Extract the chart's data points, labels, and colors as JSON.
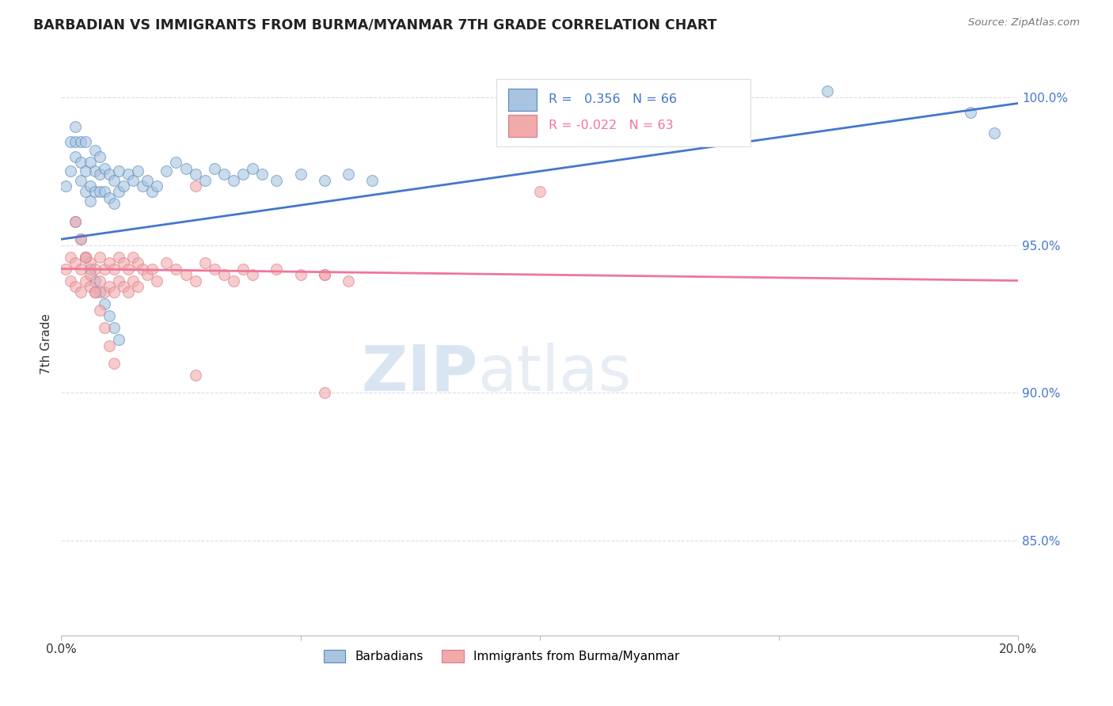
{
  "title": "BARBADIAN VS IMMIGRANTS FROM BURMA/MYANMAR 7TH GRADE CORRELATION CHART",
  "source": "Source: ZipAtlas.com",
  "ylabel": "7th Grade",
  "ytick_labels": [
    "85.0%",
    "90.0%",
    "95.0%",
    "100.0%"
  ],
  "ytick_values": [
    0.85,
    0.9,
    0.95,
    1.0
  ],
  "xlim": [
    0.0,
    0.2
  ],
  "ylim": [
    0.818,
    1.015
  ],
  "legend_blue_r": "0.356",
  "legend_blue_n": "66",
  "legend_pink_r": "-0.022",
  "legend_pink_n": "63",
  "legend_blue_label": "Barbadians",
  "legend_pink_label": "Immigrants from Burma/Myanmar",
  "blue_fill": "#A8C4E0",
  "blue_edge": "#5588BB",
  "pink_fill": "#F0AAAA",
  "pink_edge": "#DD7788",
  "blue_line": "#4477CC",
  "pink_line": "#EE7799",
  "blue_dots_x": [
    0.001,
    0.002,
    0.002,
    0.003,
    0.003,
    0.003,
    0.004,
    0.004,
    0.004,
    0.005,
    0.005,
    0.005,
    0.006,
    0.006,
    0.006,
    0.007,
    0.007,
    0.007,
    0.008,
    0.008,
    0.008,
    0.009,
    0.009,
    0.01,
    0.01,
    0.011,
    0.011,
    0.012,
    0.012,
    0.013,
    0.014,
    0.015,
    0.016,
    0.017,
    0.018,
    0.019,
    0.02,
    0.022,
    0.024,
    0.026,
    0.028,
    0.03,
    0.032,
    0.034,
    0.036,
    0.038,
    0.04,
    0.042,
    0.045,
    0.05,
    0.055,
    0.06,
    0.065,
    0.003,
    0.004,
    0.005,
    0.006,
    0.007,
    0.008,
    0.009,
    0.01,
    0.011,
    0.012,
    0.16,
    0.19,
    0.195
  ],
  "blue_dots_y": [
    0.97,
    0.985,
    0.975,
    0.99,
    0.985,
    0.98,
    0.985,
    0.978,
    0.972,
    0.985,
    0.975,
    0.968,
    0.978,
    0.97,
    0.965,
    0.982,
    0.975,
    0.968,
    0.98,
    0.974,
    0.968,
    0.976,
    0.968,
    0.974,
    0.966,
    0.972,
    0.964,
    0.975,
    0.968,
    0.97,
    0.974,
    0.972,
    0.975,
    0.97,
    0.972,
    0.968,
    0.97,
    0.975,
    0.978,
    0.976,
    0.974,
    0.972,
    0.976,
    0.974,
    0.972,
    0.974,
    0.976,
    0.974,
    0.972,
    0.974,
    0.972,
    0.974,
    0.972,
    0.958,
    0.952,
    0.946,
    0.942,
    0.938,
    0.934,
    0.93,
    0.926,
    0.922,
    0.918,
    1.002,
    0.995,
    0.988
  ],
  "pink_dots_x": [
    0.001,
    0.002,
    0.002,
    0.003,
    0.003,
    0.004,
    0.004,
    0.005,
    0.005,
    0.006,
    0.006,
    0.007,
    0.007,
    0.008,
    0.008,
    0.009,
    0.009,
    0.01,
    0.01,
    0.011,
    0.011,
    0.012,
    0.012,
    0.013,
    0.013,
    0.014,
    0.014,
    0.015,
    0.015,
    0.016,
    0.016,
    0.017,
    0.018,
    0.019,
    0.02,
    0.022,
    0.024,
    0.026,
    0.028,
    0.03,
    0.032,
    0.034,
    0.036,
    0.038,
    0.04,
    0.045,
    0.05,
    0.055,
    0.06,
    0.003,
    0.004,
    0.005,
    0.006,
    0.007,
    0.008,
    0.009,
    0.01,
    0.011,
    0.028,
    0.055,
    0.1,
    0.028,
    0.055
  ],
  "pink_dots_y": [
    0.942,
    0.946,
    0.938,
    0.944,
    0.936,
    0.942,
    0.934,
    0.946,
    0.938,
    0.944,
    0.936,
    0.942,
    0.934,
    0.946,
    0.938,
    0.942,
    0.934,
    0.944,
    0.936,
    0.942,
    0.934,
    0.946,
    0.938,
    0.944,
    0.936,
    0.942,
    0.934,
    0.946,
    0.938,
    0.944,
    0.936,
    0.942,
    0.94,
    0.942,
    0.938,
    0.944,
    0.942,
    0.94,
    0.938,
    0.944,
    0.942,
    0.94,
    0.938,
    0.942,
    0.94,
    0.942,
    0.94,
    0.94,
    0.938,
    0.958,
    0.952,
    0.946,
    0.94,
    0.934,
    0.928,
    0.922,
    0.916,
    0.91,
    0.97,
    0.94,
    0.968,
    0.906,
    0.9
  ],
  "blue_trend_x": [
    0.0,
    0.2
  ],
  "blue_trend_y": [
    0.952,
    0.998
  ],
  "pink_trend_x": [
    0.0,
    0.2
  ],
  "pink_trend_y": [
    0.942,
    0.938
  ],
  "watermark_zip": "ZIP",
  "watermark_atlas": "atlas",
  "background_color": "#ffffff",
  "grid_color": "#dddddd",
  "xtick_positions": [
    0.0,
    0.05,
    0.1,
    0.15,
    0.2
  ],
  "xtick_labels": [
    "0.0%",
    "",
    "",
    "",
    "20.0%"
  ]
}
